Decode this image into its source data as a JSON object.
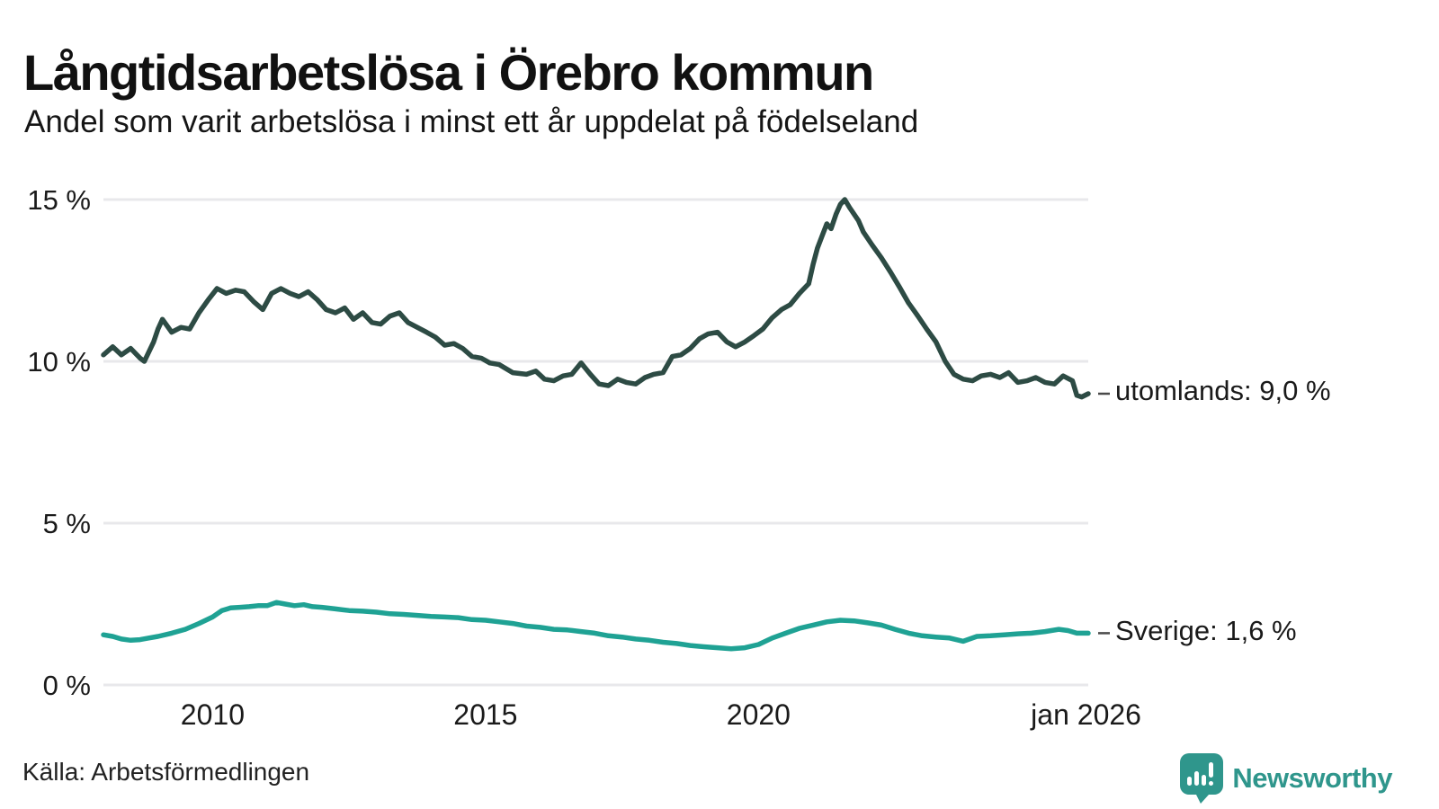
{
  "header": {
    "title": "Långtidsarbetslösa i Örebro kommun",
    "subtitle": "Andel som varit arbetslösa i minst ett år uppdelat på födelseland"
  },
  "footer": {
    "source": "Källa: Arbetsförmedlingen",
    "brand_name": "Newsworthy",
    "brand_icon": "newsworthy-speech-bubble-chart-icon"
  },
  "colors": {
    "utomlands_line": "#2d4b44",
    "sverige_line": "#1fa294",
    "gridline": "#e8e8eb",
    "connector": "#4a4a4a",
    "text": "#151515",
    "brand": "#2f968c"
  },
  "chart_data": {
    "type": "line",
    "title": "Långtidsarbetslösa i Örebro kommun",
    "subtitle": "Andel som varit arbetslösa i minst ett år uppdelat på födelseland",
    "xlabel": "",
    "ylabel": "",
    "x_domain": [
      2008.0,
      2026.04
    ],
    "ylim": [
      0,
      15
    ],
    "grid": "horizontal-only",
    "legend_position": "end-of-line-labels",
    "y_ticks": [
      {
        "value": 0,
        "label": "0 %"
      },
      {
        "value": 5,
        "label": "5 %"
      },
      {
        "value": 10,
        "label": "10 %"
      },
      {
        "value": 15,
        "label": "15 %"
      }
    ],
    "x_ticks": [
      {
        "value": 2010,
        "label": "2010"
      },
      {
        "value": 2015,
        "label": "2015"
      },
      {
        "value": 2020,
        "label": "2020"
      },
      {
        "value": 2026,
        "label": "jan 2026"
      }
    ],
    "series": [
      {
        "name": "utomlands",
        "color": "#2d4b44",
        "end_label": "utomlands: 9,0 %",
        "end_value": 9.0,
        "points": [
          [
            2008.0,
            10.2
          ],
          [
            2008.17,
            10.45
          ],
          [
            2008.33,
            10.2
          ],
          [
            2008.5,
            10.4
          ],
          [
            2008.67,
            10.1
          ],
          [
            2008.75,
            10.0
          ],
          [
            2008.92,
            10.6
          ],
          [
            2009.0,
            11.0
          ],
          [
            2009.08,
            11.3
          ],
          [
            2009.25,
            10.9
          ],
          [
            2009.42,
            11.05
          ],
          [
            2009.58,
            11.0
          ],
          [
            2009.75,
            11.5
          ],
          [
            2009.92,
            11.9
          ],
          [
            2010.08,
            12.25
          ],
          [
            2010.25,
            12.1
          ],
          [
            2010.42,
            12.2
          ],
          [
            2010.58,
            12.15
          ],
          [
            2010.75,
            11.85
          ],
          [
            2010.92,
            11.6
          ],
          [
            2011.08,
            12.1
          ],
          [
            2011.25,
            12.25
          ],
          [
            2011.42,
            12.1
          ],
          [
            2011.58,
            12.0
          ],
          [
            2011.75,
            12.15
          ],
          [
            2011.92,
            11.9
          ],
          [
            2012.08,
            11.6
          ],
          [
            2012.25,
            11.5
          ],
          [
            2012.42,
            11.65
          ],
          [
            2012.58,
            11.3
          ],
          [
            2012.75,
            11.5
          ],
          [
            2012.92,
            11.2
          ],
          [
            2013.08,
            11.15
          ],
          [
            2013.25,
            11.4
          ],
          [
            2013.42,
            11.5
          ],
          [
            2013.58,
            11.2
          ],
          [
            2013.75,
            11.05
          ],
          [
            2013.92,
            10.9
          ],
          [
            2014.08,
            10.75
          ],
          [
            2014.25,
            10.5
          ],
          [
            2014.42,
            10.55
          ],
          [
            2014.58,
            10.4
          ],
          [
            2014.75,
            10.15
          ],
          [
            2014.92,
            10.1
          ],
          [
            2015.08,
            9.95
          ],
          [
            2015.25,
            9.9
          ],
          [
            2015.5,
            9.65
          ],
          [
            2015.75,
            9.6
          ],
          [
            2015.92,
            9.7
          ],
          [
            2016.08,
            9.45
          ],
          [
            2016.25,
            9.4
          ],
          [
            2016.42,
            9.55
          ],
          [
            2016.58,
            9.6
          ],
          [
            2016.75,
            9.95
          ],
          [
            2016.92,
            9.6
          ],
          [
            2017.08,
            9.3
          ],
          [
            2017.25,
            9.25
          ],
          [
            2017.42,
            9.45
          ],
          [
            2017.58,
            9.35
          ],
          [
            2017.75,
            9.3
          ],
          [
            2017.92,
            9.5
          ],
          [
            2018.08,
            9.6
          ],
          [
            2018.25,
            9.65
          ],
          [
            2018.42,
            10.15
          ],
          [
            2018.58,
            10.2
          ],
          [
            2018.75,
            10.4
          ],
          [
            2018.92,
            10.7
          ],
          [
            2019.08,
            10.85
          ],
          [
            2019.25,
            10.9
          ],
          [
            2019.42,
            10.6
          ],
          [
            2019.58,
            10.45
          ],
          [
            2019.75,
            10.6
          ],
          [
            2019.92,
            10.8
          ],
          [
            2020.08,
            11.0
          ],
          [
            2020.25,
            11.35
          ],
          [
            2020.42,
            11.6
          ],
          [
            2020.58,
            11.75
          ],
          [
            2020.75,
            12.1
          ],
          [
            2020.92,
            12.4
          ],
          [
            2021.0,
            13.0
          ],
          [
            2021.08,
            13.5
          ],
          [
            2021.17,
            13.9
          ],
          [
            2021.25,
            14.25
          ],
          [
            2021.33,
            14.1
          ],
          [
            2021.42,
            14.55
          ],
          [
            2021.5,
            14.85
          ],
          [
            2021.58,
            15.0
          ],
          [
            2021.67,
            14.75
          ],
          [
            2021.83,
            14.35
          ],
          [
            2021.92,
            14.0
          ],
          [
            2022.08,
            13.6
          ],
          [
            2022.25,
            13.2
          ],
          [
            2022.42,
            12.75
          ],
          [
            2022.58,
            12.3
          ],
          [
            2022.75,
            11.8
          ],
          [
            2022.92,
            11.4
          ],
          [
            2023.08,
            11.0
          ],
          [
            2023.25,
            10.6
          ],
          [
            2023.42,
            10.0
          ],
          [
            2023.58,
            9.6
          ],
          [
            2023.75,
            9.45
          ],
          [
            2023.92,
            9.4
          ],
          [
            2024.08,
            9.55
          ],
          [
            2024.25,
            9.6
          ],
          [
            2024.42,
            9.5
          ],
          [
            2024.58,
            9.65
          ],
          [
            2024.75,
            9.35
          ],
          [
            2024.92,
            9.4
          ],
          [
            2025.08,
            9.5
          ],
          [
            2025.25,
            9.35
          ],
          [
            2025.42,
            9.3
          ],
          [
            2025.58,
            9.55
          ],
          [
            2025.75,
            9.4
          ],
          [
            2025.83,
            8.95
          ],
          [
            2025.92,
            8.9
          ],
          [
            2026.04,
            9.0
          ]
        ]
      },
      {
        "name": "Sverige",
        "color": "#1fa294",
        "end_label": "Sverige: 1,6 %",
        "end_value": 1.6,
        "points": [
          [
            2008.0,
            1.55
          ],
          [
            2008.17,
            1.5
          ],
          [
            2008.33,
            1.42
          ],
          [
            2008.5,
            1.38
          ],
          [
            2008.67,
            1.4
          ],
          [
            2008.83,
            1.45
          ],
          [
            2009.0,
            1.5
          ],
          [
            2009.25,
            1.6
          ],
          [
            2009.5,
            1.72
          ],
          [
            2009.75,
            1.9
          ],
          [
            2010.0,
            2.1
          ],
          [
            2010.17,
            2.3
          ],
          [
            2010.33,
            2.38
          ],
          [
            2010.5,
            2.4
          ],
          [
            2010.67,
            2.42
          ],
          [
            2010.83,
            2.45
          ],
          [
            2011.0,
            2.45
          ],
          [
            2011.17,
            2.55
          ],
          [
            2011.33,
            2.5
          ],
          [
            2011.5,
            2.45
          ],
          [
            2011.67,
            2.48
          ],
          [
            2011.83,
            2.42
          ],
          [
            2012.0,
            2.4
          ],
          [
            2012.25,
            2.35
          ],
          [
            2012.5,
            2.3
          ],
          [
            2012.75,
            2.28
          ],
          [
            2013.0,
            2.25
          ],
          [
            2013.25,
            2.2
          ],
          [
            2013.5,
            2.18
          ],
          [
            2013.75,
            2.15
          ],
          [
            2014.0,
            2.12
          ],
          [
            2014.25,
            2.1
          ],
          [
            2014.5,
            2.08
          ],
          [
            2014.75,
            2.02
          ],
          [
            2015.0,
            2.0
          ],
          [
            2015.25,
            1.95
          ],
          [
            2015.5,
            1.9
          ],
          [
            2015.75,
            1.82
          ],
          [
            2016.0,
            1.78
          ],
          [
            2016.25,
            1.72
          ],
          [
            2016.5,
            1.7
          ],
          [
            2016.75,
            1.65
          ],
          [
            2017.0,
            1.6
          ],
          [
            2017.25,
            1.52
          ],
          [
            2017.5,
            1.48
          ],
          [
            2017.75,
            1.42
          ],
          [
            2018.0,
            1.38
          ],
          [
            2018.25,
            1.32
          ],
          [
            2018.5,
            1.28
          ],
          [
            2018.75,
            1.22
          ],
          [
            2019.0,
            1.18
          ],
          [
            2019.25,
            1.15
          ],
          [
            2019.5,
            1.12
          ],
          [
            2019.75,
            1.15
          ],
          [
            2020.0,
            1.25
          ],
          [
            2020.25,
            1.45
          ],
          [
            2020.5,
            1.6
          ],
          [
            2020.75,
            1.75
          ],
          [
            2021.0,
            1.85
          ],
          [
            2021.25,
            1.95
          ],
          [
            2021.5,
            2.0
          ],
          [
            2021.75,
            1.98
          ],
          [
            2022.0,
            1.92
          ],
          [
            2022.25,
            1.85
          ],
          [
            2022.5,
            1.72
          ],
          [
            2022.75,
            1.6
          ],
          [
            2023.0,
            1.52
          ],
          [
            2023.25,
            1.48
          ],
          [
            2023.5,
            1.45
          ],
          [
            2023.75,
            1.35
          ],
          [
            2024.0,
            1.5
          ],
          [
            2024.25,
            1.52
          ],
          [
            2024.5,
            1.55
          ],
          [
            2024.75,
            1.58
          ],
          [
            2025.0,
            1.6
          ],
          [
            2025.25,
            1.65
          ],
          [
            2025.5,
            1.72
          ],
          [
            2025.67,
            1.68
          ],
          [
            2025.83,
            1.6
          ],
          [
            2026.04,
            1.6
          ]
        ]
      }
    ]
  }
}
